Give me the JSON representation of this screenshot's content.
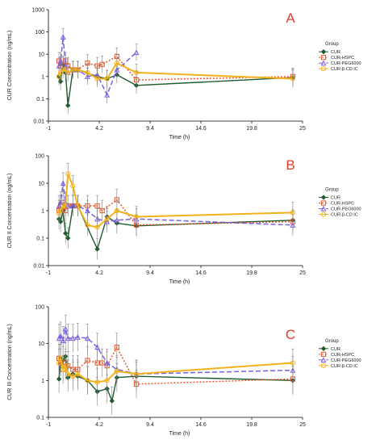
{
  "colors": {
    "CUR": "#1e5a2e",
    "CUR-HSPC": "#e8562a",
    "CUR-PEG6000": "#7b5fe0",
    "CUR-β-CD IC": "#f2b21b",
    "panel_label": "#e53a2a",
    "error_bar": "#808080"
  },
  "chart_data": [
    {
      "panel": "A",
      "type": "line",
      "log_scale_y": true,
      "xlabel": "Time (h)",
      "ylabel": "CUR Concentration (ng/mL)",
      "xlim": [
        -1,
        25
      ],
      "ylim": [
        0.01,
        1000
      ],
      "x_ticks": [
        "-1",
        "4.2",
        "9.4",
        "14.6",
        "19.8",
        "25"
      ],
      "y_ticks": [
        "0.01",
        "0.1",
        "1",
        "10",
        "100",
        "1000"
      ],
      "legend_title": "Group",
      "legend_position": "right",
      "grid": false,
      "series": [
        {
          "name": "CUR",
          "x": [
            0.083,
            0.25,
            0.5,
            0.75,
            1,
            1.5,
            2,
            4,
            5,
            6,
            8,
            24
          ],
          "y": [
            1.0,
            0.6,
            3.5,
            1.5,
            0.05,
            2.0,
            2.0,
            1.0,
            0.8,
            1.2,
            0.4,
            0.9
          ]
        },
        {
          "name": "CUR-HSPC",
          "x": [
            0.083,
            0.25,
            0.5,
            0.75,
            1,
            1.5,
            2,
            3,
            4,
            4.5,
            6,
            8,
            24
          ],
          "y": [
            5.0,
            3.0,
            3.0,
            5.0,
            3.0,
            2.0,
            2.0,
            4.0,
            3.0,
            3.5,
            8.0,
            0.7,
            1.0
          ]
        },
        {
          "name": "CUR-PEG6000",
          "x": [
            0.083,
            0.25,
            0.5,
            0.75,
            1,
            1.5,
            2,
            3,
            4,
            5,
            6,
            8
          ],
          "y": [
            3.0,
            5.0,
            60,
            3.0,
            1.5,
            2.0,
            2.0,
            1.0,
            1.2,
            0.15,
            2.0,
            12
          ]
        },
        {
          "name": "CUR-β-CD IC",
          "x": [
            0.083,
            0.25,
            0.5,
            0.75,
            1,
            1.5,
            2,
            3,
            4,
            5,
            6,
            8,
            24
          ],
          "y": [
            1.0,
            1.5,
            2.0,
            2.0,
            1.5,
            2.0,
            2.0,
            1.5,
            0.8,
            0.8,
            4.0,
            1.5,
            0.8
          ]
        }
      ]
    },
    {
      "panel": "B",
      "type": "line",
      "log_scale_y": true,
      "xlabel": "Time (h)",
      "ylabel": "CUR II Concentration (ng/mL)",
      "xlim": [
        -1,
        25
      ],
      "ylim": [
        0.01,
        100
      ],
      "x_ticks": [
        "-1",
        "4.2",
        "9.4",
        "14.6",
        "19.8",
        "25"
      ],
      "y_ticks": [
        "0.01",
        "0.1",
        "1",
        "10",
        "100"
      ],
      "legend_title": "Group",
      "legend_position": "right",
      "grid": false,
      "series": [
        {
          "name": "CUR",
          "x": [
            0.083,
            0.25,
            0.5,
            0.75,
            1,
            1.5,
            2,
            4,
            5,
            6,
            8,
            24
          ],
          "y": [
            0.5,
            0.4,
            1.0,
            0.15,
            0.1,
            1.5,
            1.5,
            0.04,
            0.6,
            0.35,
            0.28,
            0.45
          ]
        },
        {
          "name": "CUR-HSPC",
          "x": [
            0.083,
            0.25,
            0.5,
            0.75,
            1,
            1.5,
            2,
            3,
            4,
            4.5,
            6,
            8,
            24
          ],
          "y": [
            1.0,
            1.5,
            2.0,
            1.0,
            1.5,
            1.5,
            1.5,
            1.5,
            1.5,
            1.0,
            2.5,
            0.3,
            0.4
          ]
        },
        {
          "name": "CUR-PEG6000",
          "x": [
            0.083,
            0.25,
            0.5,
            0.75,
            1,
            1.5,
            2,
            3,
            4,
            5,
            6,
            8,
            24
          ],
          "y": [
            1.5,
            2.0,
            10,
            2.0,
            1.5,
            1.5,
            1.5,
            1.0,
            0.5,
            0.4,
            0.45,
            0.5,
            0.3
          ]
        },
        {
          "name": "CUR-β-CD IC",
          "x": [
            0.083,
            0.25,
            0.5,
            0.75,
            1,
            1.5,
            2,
            3,
            4,
            5,
            6,
            8,
            24
          ],
          "y": [
            0.8,
            1.0,
            1.5,
            1.5,
            22,
            8.0,
            1.5,
            0.3,
            0.25,
            0.5,
            1.0,
            0.6,
            0.85
          ]
        }
      ]
    },
    {
      "panel": "C",
      "type": "line",
      "log_scale_y": true,
      "xlabel": "Time (h)",
      "ylabel": "CUR III Concentration (ng/mL)",
      "xlim": [
        -1,
        25
      ],
      "ylim": [
        0.1,
        100
      ],
      "x_ticks": [
        "-1",
        "4.2",
        "9.4",
        "14.6",
        "19.8",
        "25"
      ],
      "y_ticks": [
        "0.1",
        "1",
        "10",
        "100"
      ],
      "legend_title": "Group",
      "legend_position": "right",
      "grid": false,
      "series": [
        {
          "name": "CUR",
          "x": [
            0.083,
            0.25,
            0.5,
            0.75,
            1,
            1.5,
            2,
            3,
            4,
            5,
            5.5,
            6,
            8,
            24
          ],
          "y": [
            1.1,
            4.0,
            3.5,
            4.5,
            1.2,
            1.5,
            1.3,
            1.0,
            0.5,
            0.6,
            0.28,
            1.2,
            1.3,
            1.0
          ]
        },
        {
          "name": "CUR-HSPC",
          "x": [
            0.083,
            0.25,
            0.5,
            0.75,
            1,
            1.5,
            2,
            3,
            4,
            4.5,
            5,
            6,
            8,
            24
          ],
          "y": [
            4.0,
            3.0,
            2.0,
            3.0,
            2.5,
            2.0,
            2.0,
            3.5,
            3.0,
            3.0,
            2.5,
            8.0,
            0.8,
            1.1
          ]
        },
        {
          "name": "CUR-PEG6000",
          "x": [
            0.083,
            0.25,
            0.5,
            0.75,
            1,
            1.5,
            2,
            3,
            4,
            5,
            6,
            8,
            24
          ],
          "y": [
            14,
            16,
            12,
            25,
            14,
            14,
            15,
            14,
            8,
            3.0,
            2.0,
            1.5,
            1.9
          ]
        },
        {
          "name": "CUR-β-CD IC",
          "x": [
            0.083,
            0.25,
            0.5,
            0.75,
            1,
            1.5,
            2,
            3,
            4,
            5,
            6,
            8,
            24
          ],
          "y": [
            3.0,
            4.0,
            2.0,
            2.5,
            1.5,
            1.3,
            1.5,
            1.0,
            0.9,
            1.0,
            1.8,
            1.5,
            3.0
          ]
        }
      ]
    }
  ]
}
